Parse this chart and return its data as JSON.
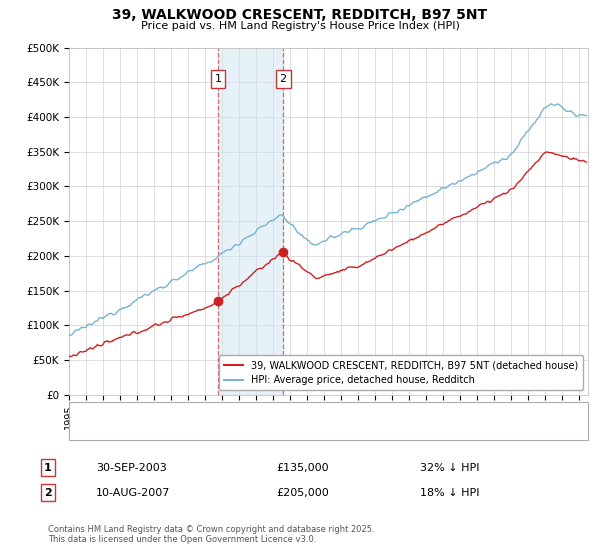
{
  "title": "39, WALKWOOD CRESCENT, REDDITCH, B97 5NT",
  "subtitle": "Price paid vs. HM Land Registry's House Price Index (HPI)",
  "ylabel_ticks": [
    "£0",
    "£50K",
    "£100K",
    "£150K",
    "£200K",
    "£250K",
    "£300K",
    "£350K",
    "£400K",
    "£450K",
    "£500K"
  ],
  "ytick_vals": [
    0,
    50000,
    100000,
    150000,
    200000,
    250000,
    300000,
    350000,
    400000,
    450000,
    500000
  ],
  "ylim": [
    0,
    500000
  ],
  "xlim_start": 1995.0,
  "xlim_end": 2025.5,
  "hpi_color": "#7ab3d4",
  "price_color": "#cc2222",
  "purchase1_date": 2003.75,
  "purchase1_price": 135000,
  "purchase1_label": "1",
  "purchase2_date": 2007.58,
  "purchase2_price": 205000,
  "purchase2_label": "2",
  "shade_color": "#d0e4f2",
  "shade_alpha": 0.5,
  "vline_color": "#cc3333",
  "legend1_text": "39, WALKWOOD CRESCENT, REDDITCH, B97 5NT (detached house)",
  "legend2_text": "HPI: Average price, detached house, Redditch",
  "annot1_date": "30-SEP-2003",
  "annot1_price": "£135,000",
  "annot1_hpi": "32% ↓ HPI",
  "annot2_date": "10-AUG-2007",
  "annot2_price": "£205,000",
  "annot2_hpi": "18% ↓ HPI",
  "footer": "Contains HM Land Registry data © Crown copyright and database right 2025.\nThis data is licensed under the Open Government Licence v3.0.",
  "bg_color": "#ffffff",
  "grid_color": "#d0d0d0"
}
